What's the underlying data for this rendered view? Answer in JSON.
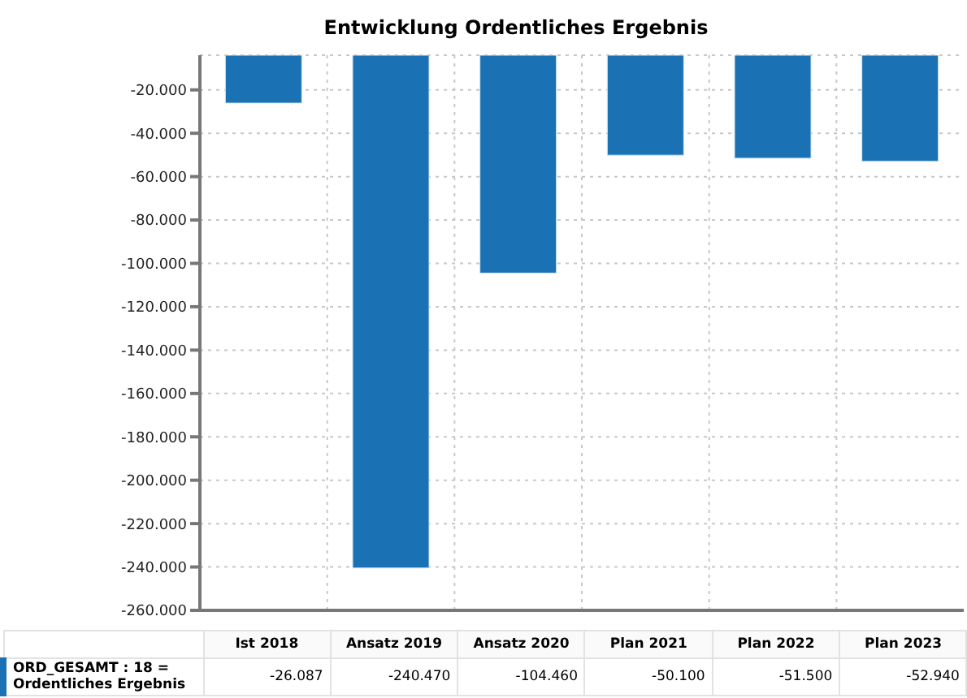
{
  "chart_data": {
    "type": "bar",
    "title": "Entwicklung Ordentliches Ergebnis",
    "categories": [
      "Ist 2018",
      "Ansatz 2019",
      "Ansatz 2020",
      "Plan 2021",
      "Plan 2022",
      "Plan 2023"
    ],
    "series": [
      {
        "name": "ORD_GESAMT : 18 = Ordentliches Ergebnis",
        "color": "#1a71b4",
        "values": [
          -26087,
          -240470,
          -104460,
          -50100,
          -51500,
          -52940
        ],
        "value_labels": [
          "-26.087",
          "-240.470",
          "-104.460",
          "-50.100",
          "-51.500",
          "-52.940"
        ]
      }
    ],
    "ylim": [
      -260000,
      -4000
    ],
    "yticks": [
      {
        "value": -20000,
        "label": "-20.000"
      },
      {
        "value": -40000,
        "label": "-40.000"
      },
      {
        "value": -60000,
        "label": "-60.000"
      },
      {
        "value": -80000,
        "label": "-80.000"
      },
      {
        "value": -100000,
        "label": "-100.000"
      },
      {
        "value": -120000,
        "label": "-120.000"
      },
      {
        "value": -140000,
        "label": "-140.000"
      },
      {
        "value": -160000,
        "label": "-160.000"
      },
      {
        "value": -180000,
        "label": "-180.000"
      },
      {
        "value": -200000,
        "label": "-200.000"
      },
      {
        "value": -220000,
        "label": "-220.000"
      },
      {
        "value": -240000,
        "label": "-240.000"
      },
      {
        "value": -260000,
        "label": "-260.000"
      }
    ],
    "grid": true,
    "tick_labels": "y"
  }
}
